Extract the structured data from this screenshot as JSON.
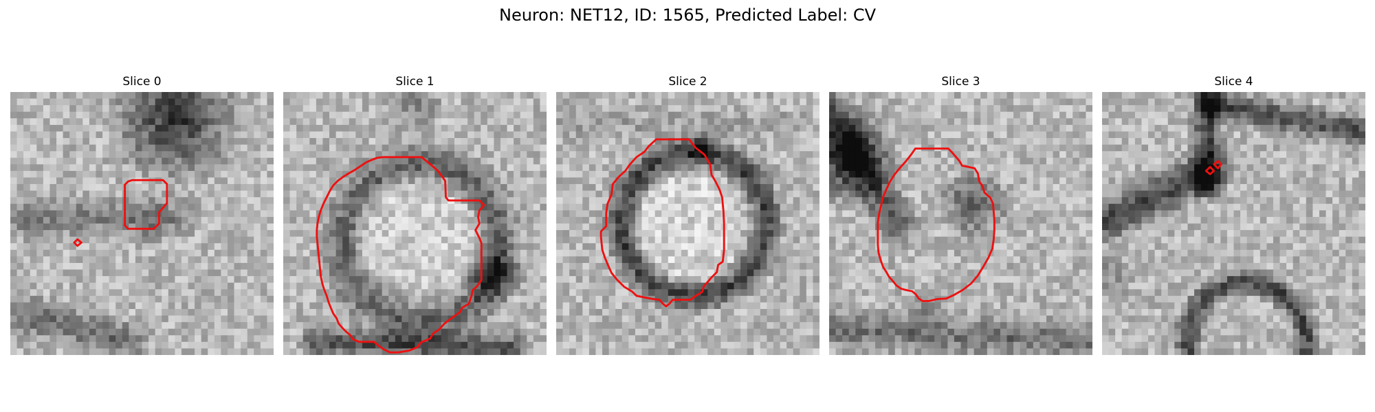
{
  "figure": {
    "title": "Neuron: NET12, ID: 1565, Predicted Label: CV"
  },
  "panels": [
    {
      "title": "Slice 0",
      "contours": [
        [
          [
            17.9,
            13.6
          ],
          [
            18.5,
            13.4
          ],
          [
            23.2,
            13.4
          ],
          [
            23.8,
            14
          ],
          [
            23.8,
            16.9
          ],
          [
            22.6,
            18.3
          ],
          [
            22.6,
            20
          ],
          [
            21.8,
            20.8
          ],
          [
            17.9,
            20.8
          ],
          [
            17.4,
            20.3
          ],
          [
            17.4,
            14.1
          ]
        ],
        [
          [
            10.2,
            22.4
          ],
          [
            10.8,
            22.9
          ],
          [
            10.2,
            23.4
          ],
          [
            9.7,
            22.9
          ]
        ]
      ]
    },
    {
      "title": "Slice 1",
      "contours": [
        [
          [
            15.2,
            9.9
          ],
          [
            21,
            9.9
          ],
          [
            22.6,
            11.2
          ],
          [
            23.5,
            12
          ],
          [
            24.6,
            13.5
          ],
          [
            24.7,
            16
          ],
          [
            25.1,
            16.5
          ],
          [
            29.8,
            16.5
          ],
          [
            30.5,
            17.2
          ],
          [
            29.8,
            18
          ],
          [
            29.6,
            19
          ],
          [
            29.8,
            20
          ],
          [
            29.2,
            21
          ],
          [
            29.8,
            22.2
          ],
          [
            30.1,
            23
          ],
          [
            30.1,
            28.6
          ],
          [
            29.4,
            29.6
          ],
          [
            28.8,
            30.1
          ],
          [
            28.6,
            31
          ],
          [
            28.2,
            32.2
          ],
          [
            27.2,
            32.8
          ],
          [
            26.8,
            33.5
          ],
          [
            25.7,
            34.3
          ],
          [
            24.5,
            35.2
          ],
          [
            23.7,
            36.1
          ],
          [
            22.8,
            36.7
          ],
          [
            22.3,
            37.5
          ],
          [
            20.9,
            38.1
          ],
          [
            20.4,
            38.8
          ],
          [
            19.2,
            39.3
          ],
          [
            17.5,
            39.6
          ],
          [
            16.2,
            39.6
          ],
          [
            15.2,
            39.1
          ],
          [
            14.5,
            38.6
          ],
          [
            13.8,
            38
          ],
          [
            11.5,
            38
          ],
          [
            10.6,
            37.6
          ],
          [
            10.2,
            37
          ],
          [
            9.6,
            36.5
          ],
          [
            9,
            35.9
          ],
          [
            8.4,
            35.2
          ],
          [
            8.1,
            34.4
          ],
          [
            7.6,
            33.7
          ],
          [
            7.3,
            33
          ],
          [
            6.9,
            32
          ],
          [
            6.6,
            31
          ],
          [
            6.2,
            30
          ],
          [
            5.9,
            29
          ],
          [
            5.7,
            28
          ],
          [
            5.6,
            27
          ],
          [
            5.5,
            26
          ],
          [
            5.4,
            25
          ],
          [
            5.3,
            24
          ],
          [
            5.2,
            23
          ],
          [
            5.1,
            22
          ],
          [
            5.1,
            21
          ],
          [
            5.2,
            20
          ],
          [
            5.4,
            19
          ],
          [
            5.7,
            18
          ],
          [
            6.1,
            17
          ],
          [
            6.6,
            16
          ],
          [
            7.1,
            15
          ],
          [
            7.6,
            14.2
          ],
          [
            8.3,
            13.5
          ],
          [
            9.1,
            12.9
          ],
          [
            9.9,
            12.4
          ],
          [
            10.8,
            11.9
          ],
          [
            11.7,
            11.3
          ],
          [
            12.6,
            10.7
          ],
          [
            13.5,
            10.3
          ],
          [
            14.3,
            10
          ]
        ]
      ]
    },
    {
      "title": "Slice 2",
      "contours": [
        [
          [
            15.2,
            7.2
          ],
          [
            20.2,
            7.2
          ],
          [
            21.2,
            8.5
          ],
          [
            22.5,
            9.5
          ],
          [
            23.4,
            11
          ],
          [
            23.6,
            12.6
          ],
          [
            24.2,
            13.6
          ],
          [
            24.8,
            14.8
          ],
          [
            25.2,
            16
          ],
          [
            25.4,
            18
          ],
          [
            25.5,
            20
          ],
          [
            25.5,
            22
          ],
          [
            25.5,
            24
          ],
          [
            25.3,
            25.8
          ],
          [
            24.6,
            26.3
          ],
          [
            24.4,
            27.4
          ],
          [
            23.6,
            28.2
          ],
          [
            23,
            28.9
          ],
          [
            22.4,
            29.6
          ],
          [
            22.2,
            30.4
          ],
          [
            21.2,
            31
          ],
          [
            20.4,
            31.6
          ],
          [
            17.7,
            31.6
          ],
          [
            17.2,
            32.2
          ],
          [
            16.7,
            32.6
          ],
          [
            16.2,
            32.2
          ],
          [
            15.7,
            31.6
          ],
          [
            14.8,
            31.5
          ],
          [
            13.7,
            31.3
          ],
          [
            12.2,
            31
          ],
          [
            11.6,
            30.4
          ],
          [
            10.3,
            29.6
          ],
          [
            9.2,
            28.5
          ],
          [
            8.4,
            27.5
          ],
          [
            7.9,
            26.4
          ],
          [
            7.4,
            25.2
          ],
          [
            7,
            24
          ],
          [
            6.9,
            23
          ],
          [
            6.8,
            22
          ],
          [
            6.8,
            21.2
          ],
          [
            7.6,
            20.4
          ],
          [
            7.6,
            18.4
          ],
          [
            7.8,
            17
          ],
          [
            8.4,
            15.6
          ],
          [
            8.6,
            14
          ],
          [
            9.5,
            12.9
          ],
          [
            10.5,
            12
          ],
          [
            11.2,
            11
          ],
          [
            12.2,
            9.9
          ],
          [
            13.4,
            9.1
          ],
          [
            14,
            8.3
          ]
        ]
      ]
    },
    {
      "title": "Slice 3",
      "contours": [
        [
          [
            13.1,
            8.6
          ],
          [
            18.1,
            8.6
          ],
          [
            18.6,
            9.1
          ],
          [
            19.2,
            9.8
          ],
          [
            19.8,
            10.5
          ],
          [
            20.2,
            11.2
          ],
          [
            21.2,
            11.4
          ],
          [
            22.1,
            11.6
          ],
          [
            22.6,
            12.4
          ],
          [
            22.8,
            13.6
          ],
          [
            23.3,
            14.3
          ],
          [
            23.6,
            15.3
          ],
          [
            24.5,
            16.1
          ],
          [
            24.9,
            17
          ],
          [
            25,
            18.2
          ],
          [
            25.1,
            19.6
          ],
          [
            25.1,
            21
          ],
          [
            25,
            22.4
          ],
          [
            24.8,
            23.8
          ],
          [
            24.2,
            25.2
          ],
          [
            23.4,
            26.6
          ],
          [
            22.6,
            27.9
          ],
          [
            21.6,
            29.1
          ],
          [
            20.3,
            30.1
          ],
          [
            19.1,
            30.8
          ],
          [
            17.8,
            31.4
          ],
          [
            16.4,
            31.5
          ],
          [
            15.1,
            31.8
          ],
          [
            14.2,
            31.8
          ],
          [
            13.6,
            31.4
          ],
          [
            13.2,
            30.8
          ],
          [
            12.6,
            30.3
          ],
          [
            11.6,
            30.1
          ],
          [
            10.9,
            29.9
          ],
          [
            10.2,
            29.4
          ],
          [
            9.8,
            28.9
          ],
          [
            9.1,
            28.1
          ],
          [
            8.7,
            27.4
          ],
          [
            8.2,
            26.6
          ],
          [
            7.8,
            25.5
          ],
          [
            7.5,
            24.4
          ],
          [
            7.4,
            23.2
          ],
          [
            7.4,
            22.2
          ],
          [
            7.4,
            21.1
          ],
          [
            7.4,
            19.8
          ],
          [
            7.6,
            18.5
          ],
          [
            7.9,
            17.2
          ],
          [
            8.2,
            16
          ],
          [
            8.7,
            14.8
          ],
          [
            9.2,
            13.7
          ],
          [
            9.9,
            12.6
          ],
          [
            10.7,
            11.6
          ],
          [
            11.6,
            10.6
          ],
          [
            12.4,
            9.6
          ]
        ]
      ]
    },
    {
      "title": "Slice 4",
      "contours": [
        [
          [
            17.6,
            10.5
          ],
          [
            18.1,
            11
          ],
          [
            17.6,
            11.6
          ],
          [
            17,
            11
          ]
        ],
        [
          [
            16.4,
            11.4
          ],
          [
            17,
            12
          ],
          [
            16.4,
            12.5
          ],
          [
            15.8,
            12
          ]
        ]
      ]
    }
  ]
}
